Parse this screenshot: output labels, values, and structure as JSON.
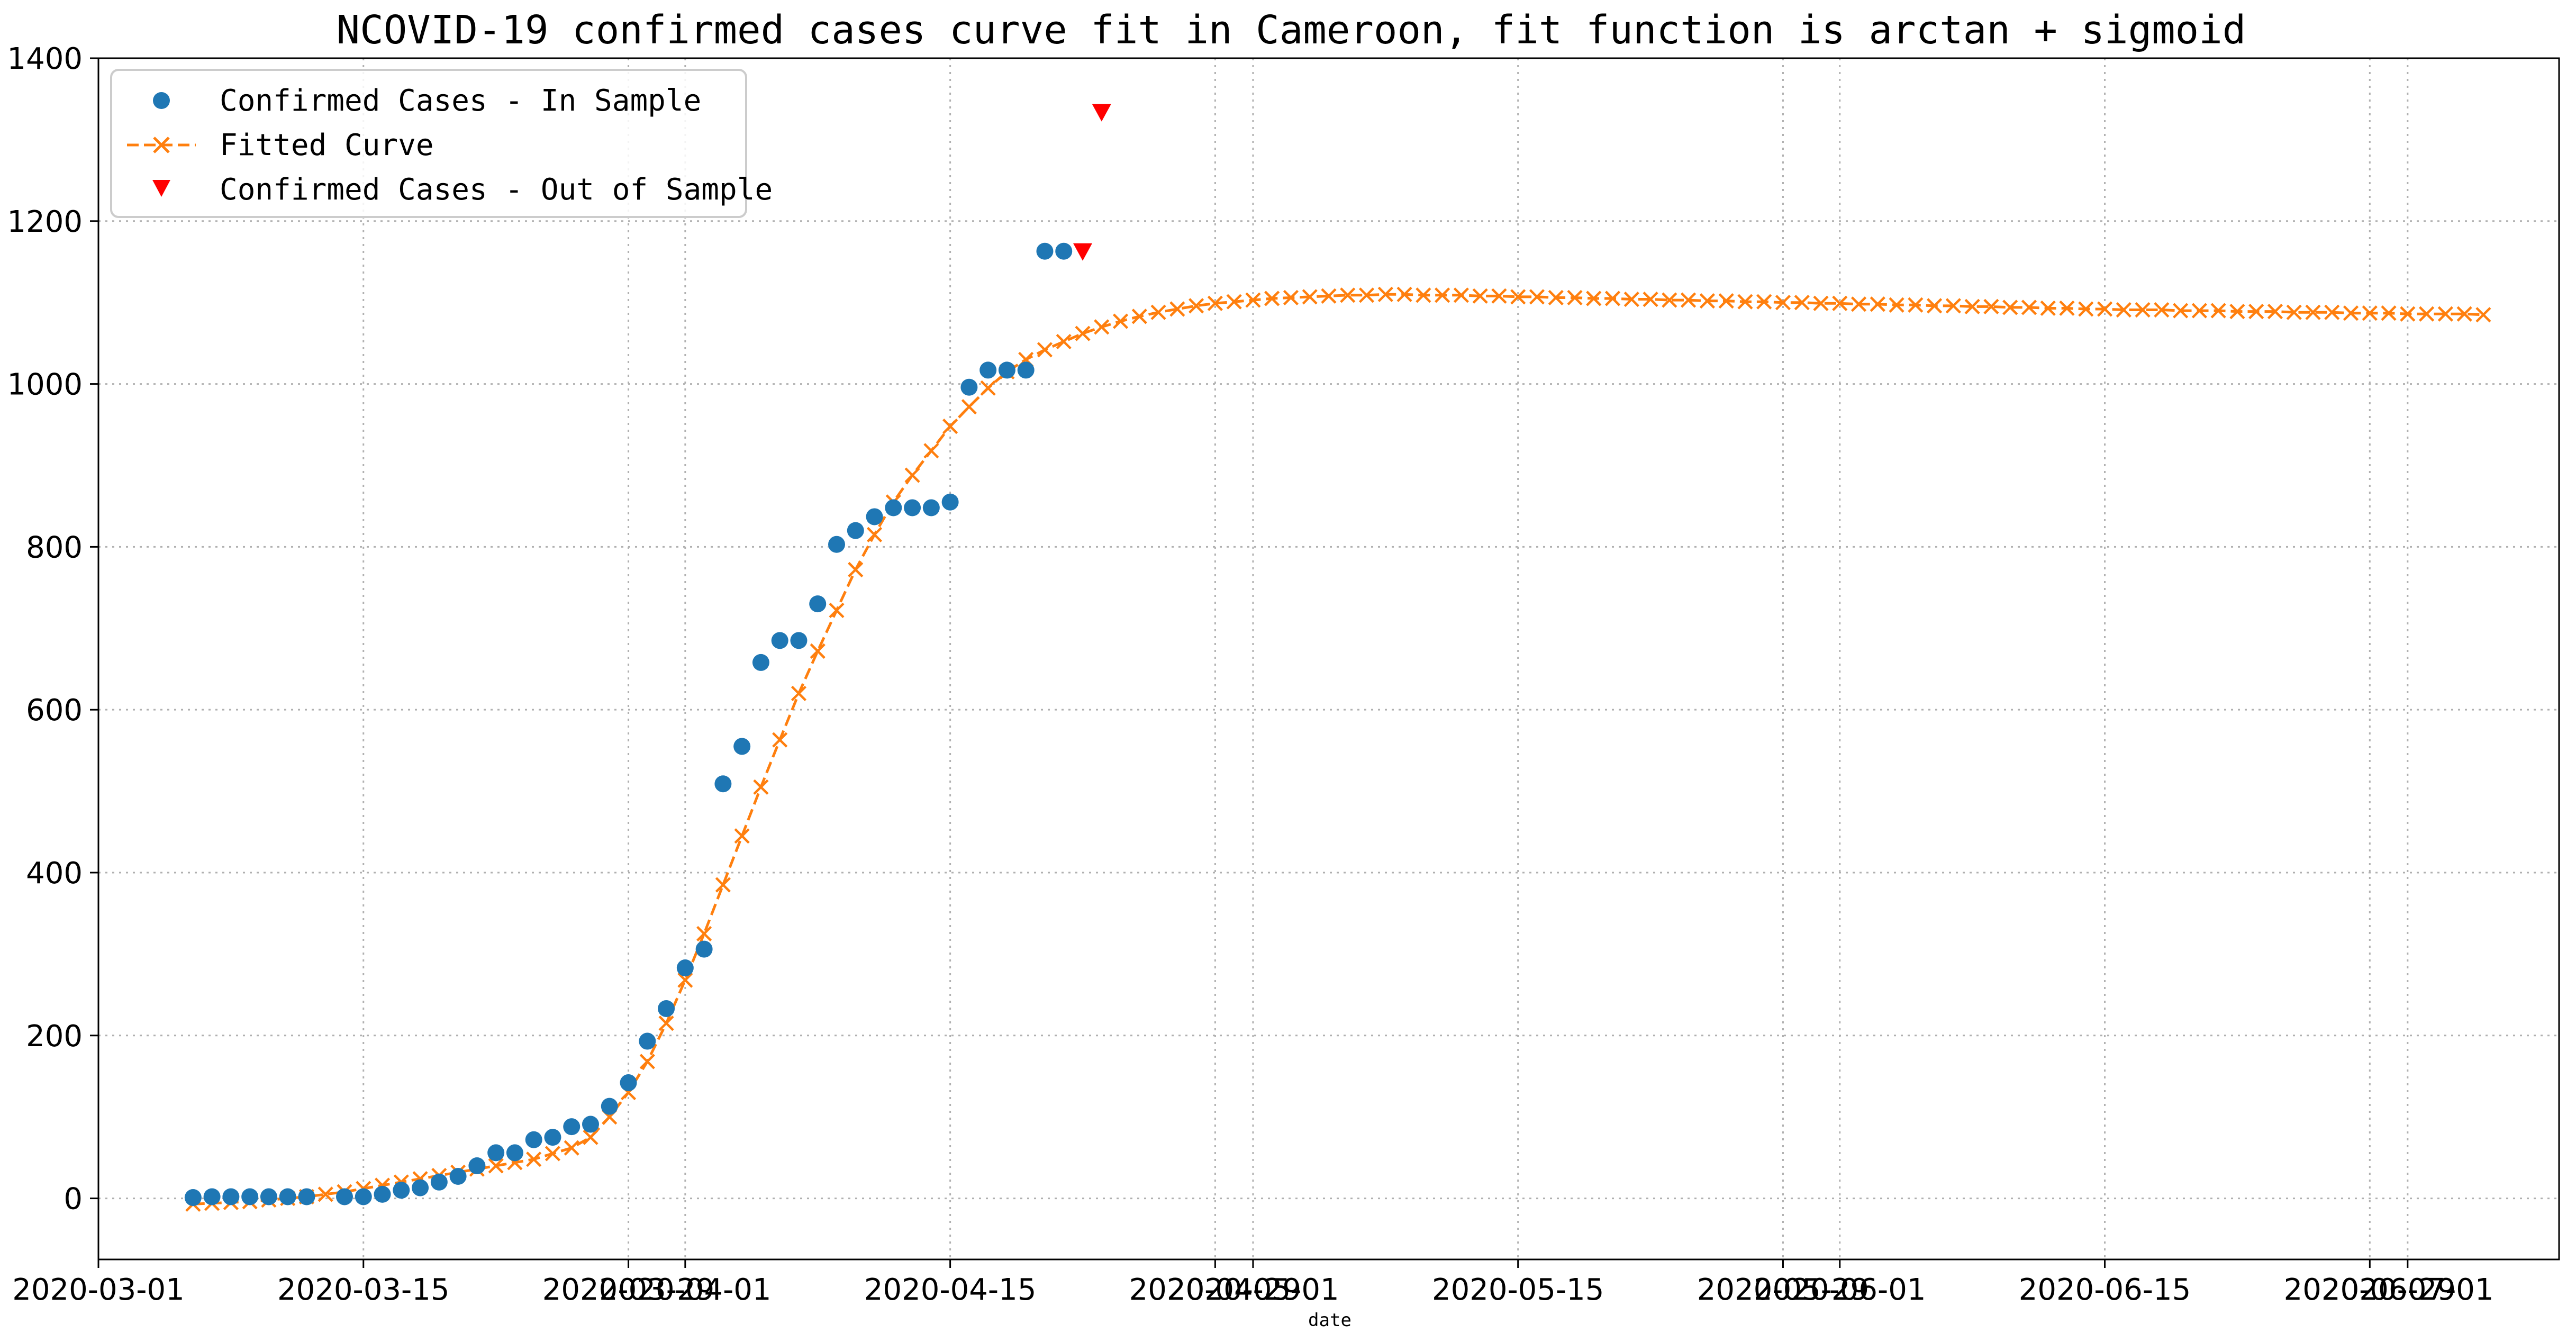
{
  "chart_data": {
    "type": "line",
    "title": "NCOVID-19 confirmed cases curve fit in Cameroon, fit function is arctan + sigmoid",
    "xlabel": "date",
    "ylabel": "",
    "ylim": [
      -75,
      1400
    ],
    "xlim": [
      "2020-03-01",
      "2020-07-09"
    ],
    "y_ticks": [
      0,
      200,
      400,
      600,
      800,
      1000,
      1200,
      1400
    ],
    "x_ticks": [
      {
        "date": "2020-03-01",
        "label": "2020-03-01"
      },
      {
        "date": "2020-03-15",
        "label": "2020-03-15"
      },
      {
        "date": "2020-03-29",
        "label": "2020-03-29"
      },
      {
        "date": "2020-04-01",
        "label": "2020-04-01"
      },
      {
        "date": "2020-04-15",
        "label": "2020-04-15"
      },
      {
        "date": "2020-04-29",
        "label": "2020-04-29"
      },
      {
        "date": "2020-05-01",
        "label": "2020-05-01"
      },
      {
        "date": "2020-05-15",
        "label": "2020-05-15"
      },
      {
        "date": "2020-05-29",
        "label": "2020-05-29"
      },
      {
        "date": "2020-06-01",
        "label": "2020-06-01"
      },
      {
        "date": "2020-06-15",
        "label": "2020-06-15"
      },
      {
        "date": "2020-06-29",
        "label": "2020-06-29"
      },
      {
        "date": "2020-07-01",
        "label": "2020-07-01"
      }
    ],
    "grid": true,
    "legend_position": "upper-left",
    "colors": {
      "in_sample": "#1f77b4",
      "fitted": "#ff7f0e",
      "out_of_sample": "#ff0000"
    },
    "series": [
      {
        "name": "Confirmed Cases - In Sample",
        "style": "marker-circle",
        "x": [
          "2020-03-06",
          "2020-03-07",
          "2020-03-08",
          "2020-03-09",
          "2020-03-10",
          "2020-03-11",
          "2020-03-12",
          "2020-03-14",
          "2020-03-15",
          "2020-03-16",
          "2020-03-17",
          "2020-03-18",
          "2020-03-19",
          "2020-03-20",
          "2020-03-21",
          "2020-03-22",
          "2020-03-23",
          "2020-03-24",
          "2020-03-25",
          "2020-03-26",
          "2020-03-27",
          "2020-03-28",
          "2020-03-29",
          "2020-03-30",
          "2020-03-31",
          "2020-04-01",
          "2020-04-02",
          "2020-04-03",
          "2020-04-04",
          "2020-04-05",
          "2020-04-06",
          "2020-04-07",
          "2020-04-08",
          "2020-04-09",
          "2020-04-10",
          "2020-04-11",
          "2020-04-12",
          "2020-04-13",
          "2020-04-14",
          "2020-04-15",
          "2020-04-16",
          "2020-04-17",
          "2020-04-18",
          "2020-04-19",
          "2020-04-20",
          "2020-04-21"
        ],
        "values": [
          1,
          2,
          2,
          2,
          2,
          2,
          2,
          2,
          2,
          5,
          10,
          13,
          20,
          27,
          40,
          56,
          56,
          72,
          75,
          88,
          91,
          113,
          142,
          193,
          233,
          283,
          306,
          509,
          555,
          658,
          685,
          685,
          730,
          803,
          820,
          837,
          848,
          848,
          848,
          855,
          996,
          1017,
          1017,
          1017,
          1163,
          1163
        ]
      },
      {
        "name": "Fitted Curve",
        "style": "dashed-line-x-marker",
        "x": [
          "2020-03-06",
          "2020-03-07",
          "2020-03-08",
          "2020-03-09",
          "2020-03-10",
          "2020-03-11",
          "2020-03-12",
          "2020-03-13",
          "2020-03-14",
          "2020-03-15",
          "2020-03-16",
          "2020-03-17",
          "2020-03-18",
          "2020-03-19",
          "2020-03-20",
          "2020-03-21",
          "2020-03-22",
          "2020-03-23",
          "2020-03-24",
          "2020-03-25",
          "2020-03-26",
          "2020-03-27",
          "2020-03-28",
          "2020-03-29",
          "2020-03-30",
          "2020-03-31",
          "2020-04-01",
          "2020-04-02",
          "2020-04-03",
          "2020-04-04",
          "2020-04-05",
          "2020-04-06",
          "2020-04-07",
          "2020-04-08",
          "2020-04-09",
          "2020-04-10",
          "2020-04-11",
          "2020-04-12",
          "2020-04-13",
          "2020-04-14",
          "2020-04-15",
          "2020-04-16",
          "2020-04-17",
          "2020-04-18",
          "2020-04-19",
          "2020-04-20",
          "2020-04-21",
          "2020-04-22",
          "2020-04-23",
          "2020-04-24",
          "2020-04-25",
          "2020-04-26",
          "2020-04-27",
          "2020-04-28",
          "2020-04-29",
          "2020-04-30",
          "2020-05-01",
          "2020-05-02",
          "2020-05-03",
          "2020-05-04",
          "2020-05-05",
          "2020-05-06",
          "2020-05-07",
          "2020-05-08",
          "2020-05-09",
          "2020-05-10",
          "2020-05-11",
          "2020-05-12",
          "2020-05-13",
          "2020-05-14",
          "2020-05-15",
          "2020-05-16",
          "2020-05-17",
          "2020-05-18",
          "2020-05-19",
          "2020-05-20",
          "2020-05-21",
          "2020-05-22",
          "2020-05-23",
          "2020-05-24",
          "2020-05-25",
          "2020-05-26",
          "2020-05-27",
          "2020-05-28",
          "2020-05-29",
          "2020-05-30",
          "2020-05-31",
          "2020-06-01",
          "2020-06-02",
          "2020-06-03",
          "2020-06-04",
          "2020-06-05",
          "2020-06-06",
          "2020-06-07",
          "2020-06-08",
          "2020-06-09",
          "2020-06-10",
          "2020-06-11",
          "2020-06-12",
          "2020-06-13",
          "2020-06-14",
          "2020-06-15",
          "2020-06-16",
          "2020-06-17",
          "2020-06-18",
          "2020-06-19",
          "2020-06-20",
          "2020-06-21",
          "2020-06-22",
          "2020-06-23",
          "2020-06-24",
          "2020-06-25",
          "2020-06-26",
          "2020-06-27",
          "2020-06-28",
          "2020-06-29",
          "2020-06-30",
          "2020-07-01",
          "2020-07-02",
          "2020-07-03",
          "2020-07-04",
          "2020-07-05"
        ],
        "values": [
          -7,
          -6,
          -5,
          -4,
          -2,
          0,
          2,
          5,
          8,
          12,
          16,
          20,
          24,
          28,
          32,
          36,
          40,
          44,
          48,
          55,
          62,
          75,
          100,
          130,
          168,
          215,
          268,
          325,
          385,
          445,
          505,
          563,
          620,
          672,
          722,
          772,
          815,
          855,
          888,
          918,
          948,
          972,
          995,
          1015,
          1030,
          1042,
          1052,
          1062,
          1070,
          1077,
          1083,
          1088,
          1092,
          1096,
          1099,
          1101,
          1103,
          1105,
          1106,
          1107,
          1108,
          1109,
          1109,
          1110,
          1110,
          1109,
          1109,
          1109,
          1108,
          1108,
          1107,
          1107,
          1106,
          1106,
          1105,
          1105,
          1104,
          1104,
          1103,
          1103,
          1102,
          1102,
          1101,
          1101,
          1100,
          1100,
          1099,
          1099,
          1098,
          1098,
          1097,
          1097,
          1096,
          1096,
          1095,
          1095,
          1094,
          1094,
          1093,
          1093,
          1092,
          1092,
          1091,
          1091,
          1091,
          1090,
          1090,
          1090,
          1089,
          1089,
          1089,
          1088,
          1088,
          1088,
          1087,
          1087,
          1087,
          1086,
          1086,
          1086,
          1086,
          1085
        ]
      },
      {
        "name": "Confirmed Cases - Out of Sample",
        "style": "marker-triangle-down",
        "x": [
          "2020-04-22",
          "2020-04-23"
        ],
        "values": [
          1163,
          1334
        ]
      }
    ]
  }
}
